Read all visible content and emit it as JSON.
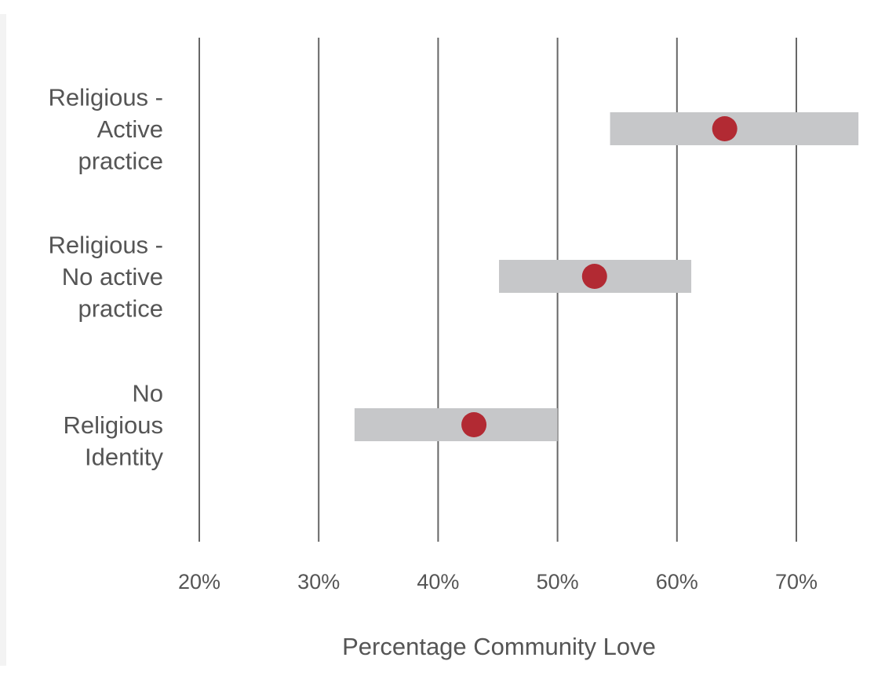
{
  "chart_data": {
    "type": "dot-range",
    "xlabel": "Percentage Community Love",
    "xlim": [
      20,
      70
    ],
    "x_ticks": [
      "20%",
      "30%",
      "40%",
      "50%",
      "60%",
      "70%"
    ],
    "x_tick_values": [
      20,
      30,
      40,
      50,
      60,
      70
    ],
    "grid": true,
    "categories": [
      {
        "label_lines": [
          "Religious -",
          "Active",
          "practice"
        ],
        "low": 54.4,
        "high": 75.2,
        "point": 64.0
      },
      {
        "label_lines": [
          "Religious -",
          "No active",
          "practice"
        ],
        "low": 45.1,
        "high": 61.2,
        "point": 53.1
      },
      {
        "label_lines": [
          "No",
          "Religious",
          "Identity"
        ],
        "low": 33.0,
        "high": 50.0,
        "point": 43.0
      }
    ]
  },
  "colors": {
    "range_bar": "#c6c7c9",
    "point": "#b22a33",
    "gridline": "#666666",
    "text": "#555555"
  }
}
